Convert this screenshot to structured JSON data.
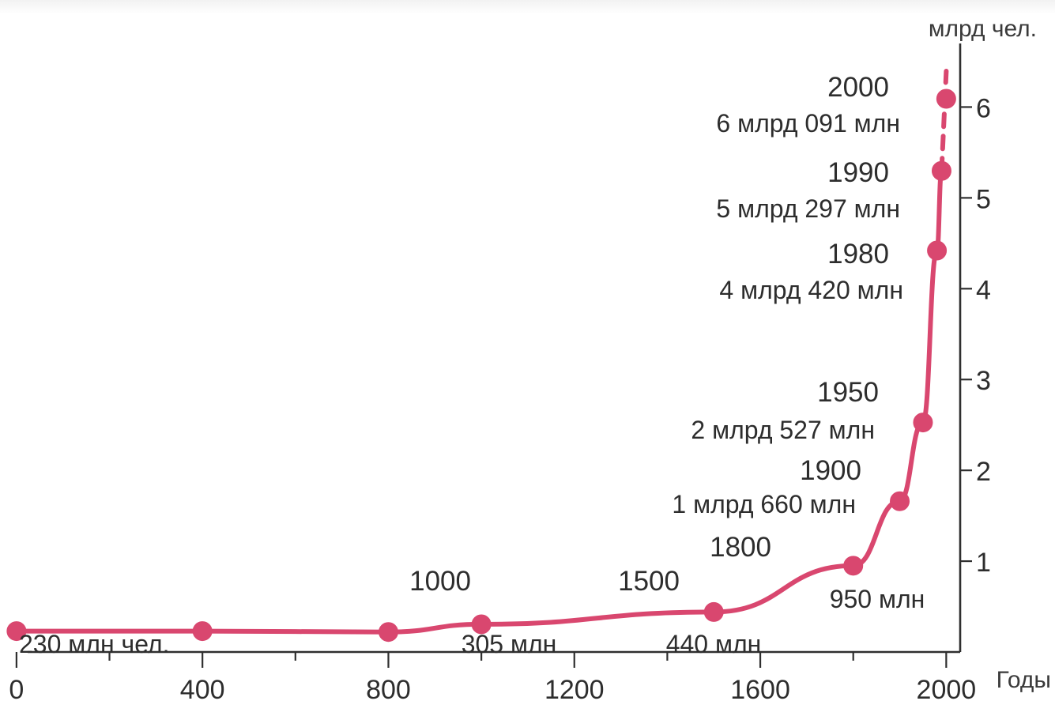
{
  "chart_data": {
    "type": "line",
    "title": "",
    "xlabel": "Годы",
    "ylabel": "млрд чел.",
    "xlim": [
      -10,
      2030
    ],
    "ylim": [
      0,
      6.7
    ],
    "x_ticks": [
      0,
      400,
      800,
      1200,
      1600,
      2000
    ],
    "y_ticks": [
      1,
      2,
      3,
      4,
      5,
      6
    ],
    "grid": false,
    "legend": "none",
    "series": [
      {
        "values": [
          {
            "x": 0,
            "y": 0.23
          },
          {
            "x": 400,
            "y": 0.23
          },
          {
            "x": 800,
            "y": 0.22
          },
          {
            "x": 1000,
            "y": 0.305
          },
          {
            "x": 1500,
            "y": 0.44
          },
          {
            "x": 1800,
            "y": 0.95
          },
          {
            "x": 1900,
            "y": 1.66
          },
          {
            "x": 1950,
            "y": 2.527
          },
          {
            "x": 1980,
            "y": 4.42
          },
          {
            "x": 1990,
            "y": 5.297
          },
          {
            "x": 2000,
            "y": 6.091
          }
        ]
      }
    ],
    "annotations": [
      {
        "year": "",
        "value": "230 млн  чел."
      },
      {
        "year": "1000",
        "value": "305 млн"
      },
      {
        "year": "1500",
        "value": "440 млн"
      },
      {
        "year": "1800",
        "value": "950 млн"
      },
      {
        "year": "1900",
        "value": "1 млрд 660 млн"
      },
      {
        "year": "1950",
        "value": "2 млрд 527 млн"
      },
      {
        "year": "1980",
        "value": "4 млрд 420 млн"
      },
      {
        "year": "1990",
        "value": "5 млрд 297 млн"
      },
      {
        "year": "2000",
        "value": "6 млрд 091 млн"
      }
    ],
    "colors": {
      "line": "#d9476f",
      "points": "#d9476f",
      "axes": "#2f2f2f"
    }
  }
}
